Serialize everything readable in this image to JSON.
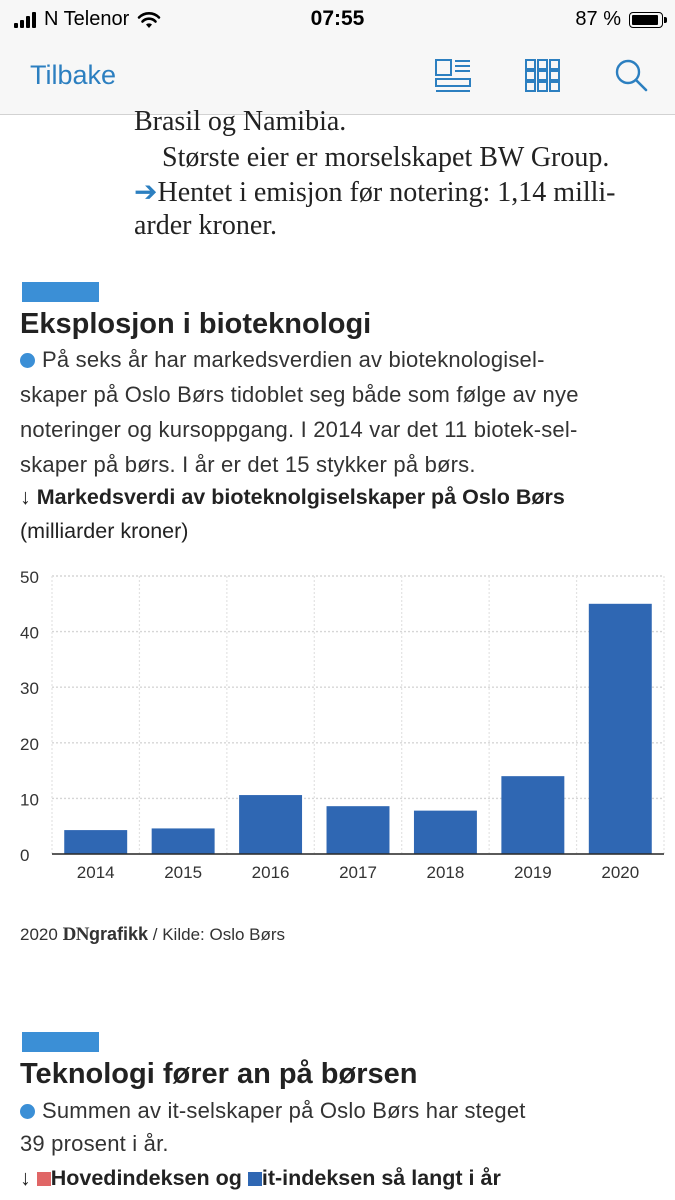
{
  "status_bar": {
    "carrier": "N Telenor",
    "time": "07:55",
    "battery": "87 %"
  },
  "nav": {
    "back_label": "Tilbake",
    "icons": [
      "layout-icon",
      "grid-icon",
      "search-icon"
    ]
  },
  "article_top": {
    "lines": [
      "Brasil og Namibia.",
      "Største eier er morselskapet BW Group."
    ],
    "bullet_line_1": "Hentet i emisjon før notering: 1,14 milli-",
    "bullet_line_2": "arder kroner."
  },
  "graphic1": {
    "title": "Eksplosjon i bioteknologi",
    "intro_lines": [
      "På seks år har markedsverdien av bioteknologisel-",
      "skaper på Oslo Børs tidoblet seg både som følge av nye",
      "noteringer og kursoppgang. I 2014 var det 11 biotek-sel-",
      "skaper på børs. I år er det 15 stykker på børs."
    ],
    "chart_label": "↓ Markedsverdi av bioteknolgiselskaper på Oslo Børs",
    "chart_unit": "(milliarder kroner)",
    "credit_year": "2020",
    "credit_brand_1": "DN",
    "credit_brand_2": "grafikk",
    "credit_source": " / Kilde: Oslo Børs"
  },
  "chart_data": {
    "type": "bar",
    "categories": [
      "2014",
      "2015",
      "2016",
      "2017",
      "2018",
      "2019",
      "2020"
    ],
    "values": [
      4.3,
      4.6,
      10.6,
      8.6,
      7.8,
      14.0,
      45.0
    ],
    "ylim": [
      0,
      50
    ],
    "yticks": [
      0,
      10,
      20,
      30,
      40,
      50
    ],
    "bar_color": "#2f67b3",
    "grid": true
  },
  "graphic2": {
    "title": "Teknologi fører an på børsen",
    "intro_lines": [
      "Summen av it-selskaper på Oslo Børs har steget",
      "39 prosent i år."
    ],
    "legend_prefix": "↓ ",
    "legend_a": "Hovedindeksen og ",
    "legend_b": "it-indeksen så langt i år",
    "legend_a_color": "#e06666",
    "legend_b_color": "#2f67b3"
  },
  "colors": {
    "accent": "#2c7fc0",
    "section_bar": "#3b8fd6"
  }
}
